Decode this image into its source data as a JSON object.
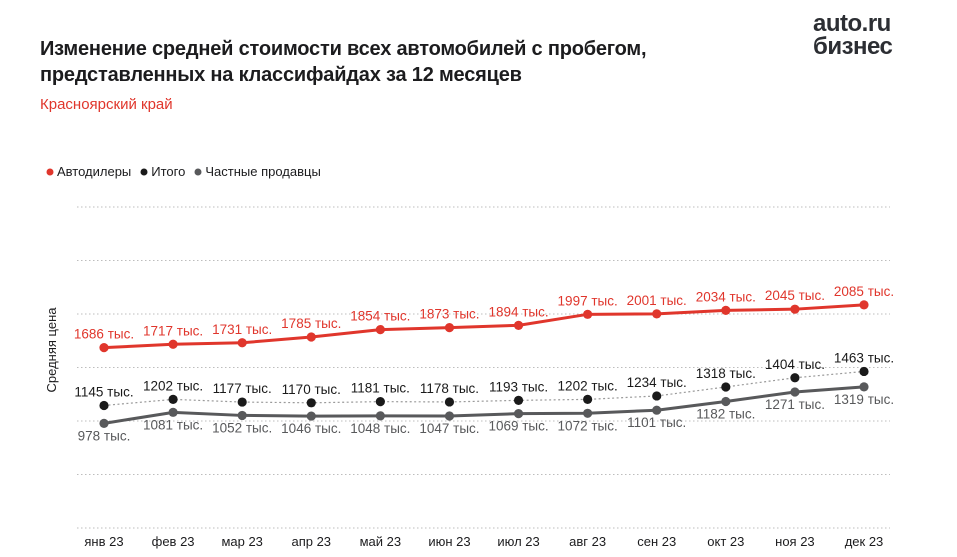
{
  "header": {
    "title_line1": "Изменение средней стоимости всех автомобилей с пробегом,",
    "title_line2": "представленных на классифайдах за 12 месяцев",
    "subtitle": "Красноярский край",
    "logo_line1": "auto.ru",
    "logo_line2": "бизнес"
  },
  "chart_data": {
    "type": "line",
    "title": "Изменение средней стоимости всех автомобилей с пробегом, представленных на классифайдах за 12 месяцев",
    "region": "Красноярский край",
    "ylabel": "Средняя цена",
    "xlabel": "",
    "value_suffix": "тыс.",
    "ylim": [
      0,
      3000
    ],
    "grid_step": 500,
    "grid": "horizontal-dotted",
    "grid_color": "#bdbdbd",
    "legend_position": "top-left",
    "categories": [
      "янв 23",
      "фев 23",
      "мар 23",
      "апр 23",
      "май 23",
      "июн 23",
      "июл 23",
      "авг 23",
      "сен 23",
      "окт 23",
      "ноя 23",
      "дек 23"
    ],
    "series": [
      {
        "id": "avtodilery",
        "name": "Автодилеры",
        "color": "#e0362c",
        "line_color": "#e0362c",
        "line_width": 3,
        "line_dash": "",
        "label_color": "#e0362c",
        "label_position": "above",
        "values": [
          1686,
          1717,
          1731,
          1785,
          1854,
          1873,
          1894,
          1997,
          2001,
          2034,
          2045,
          2085
        ]
      },
      {
        "id": "itogo",
        "name": "Итого",
        "color": "#1a1a1a",
        "line_color": "#9a9a9a",
        "line_width": 1.2,
        "line_dash": "2 2.5",
        "label_color": "#1a1a1a",
        "label_position": "above",
        "values": [
          1145,
          1202,
          1177,
          1170,
          1181,
          1178,
          1193,
          1202,
          1234,
          1318,
          1404,
          1463
        ]
      },
      {
        "id": "chastnye-prodavtsy",
        "name": "Частные продавцы",
        "color": "#58595b",
        "line_color": "#58595b",
        "line_width": 3,
        "line_dash": "",
        "label_color": "#58595b",
        "label_position": "below",
        "values": [
          978,
          1081,
          1052,
          1046,
          1048,
          1047,
          1069,
          1072,
          1101,
          1182,
          1271,
          1319
        ]
      }
    ]
  }
}
